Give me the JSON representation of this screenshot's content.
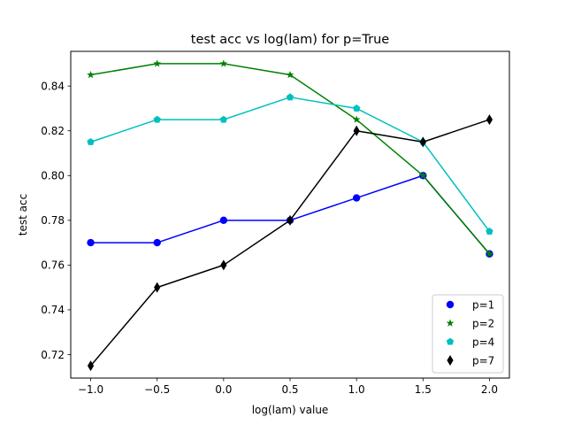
{
  "chart_data": {
    "type": "line",
    "title": "test acc vs log(lam) for p=True",
    "xlabel": "log(lam) value",
    "ylabel": "test acc",
    "x": [
      -1.0,
      -0.5,
      0.0,
      0.5,
      1.0,
      1.5,
      2.0
    ],
    "xlim": [
      -1.15,
      2.15
    ],
    "ylim": [
      0.7095,
      0.8555
    ],
    "xticks": [
      -1.0,
      -0.5,
      0.0,
      0.5,
      1.0,
      1.5,
      2.0
    ],
    "xtick_labels": [
      "−1.0",
      "−0.5",
      "0.0",
      "0.5",
      "1.0",
      "1.5",
      "2.0"
    ],
    "yticks": [
      0.72,
      0.74,
      0.76,
      0.78,
      0.8,
      0.82,
      0.84
    ],
    "ytick_labels": [
      "0.72",
      "0.74",
      "0.76",
      "0.78",
      "0.80",
      "0.82",
      "0.84"
    ],
    "grid": false,
    "legend_position": "lower-right",
    "series": [
      {
        "name": "p=1",
        "color": "#0000ff",
        "marker": "circle",
        "values": [
          0.77,
          0.77,
          0.78,
          0.78,
          0.79,
          0.8,
          0.765
        ]
      },
      {
        "name": "p=2",
        "color": "#008000",
        "marker": "star",
        "values": [
          0.845,
          0.85,
          0.85,
          0.845,
          0.825,
          0.8,
          0.765
        ]
      },
      {
        "name": "p=4",
        "color": "#00bfbf",
        "marker": "pentagon",
        "values": [
          0.815,
          0.825,
          0.825,
          0.835,
          0.83,
          0.815,
          0.775
        ]
      },
      {
        "name": "p=7",
        "color": "#000000",
        "marker": "thin-diamond",
        "values": [
          0.715,
          0.75,
          0.76,
          0.78,
          0.82,
          0.815,
          0.825
        ]
      }
    ]
  }
}
